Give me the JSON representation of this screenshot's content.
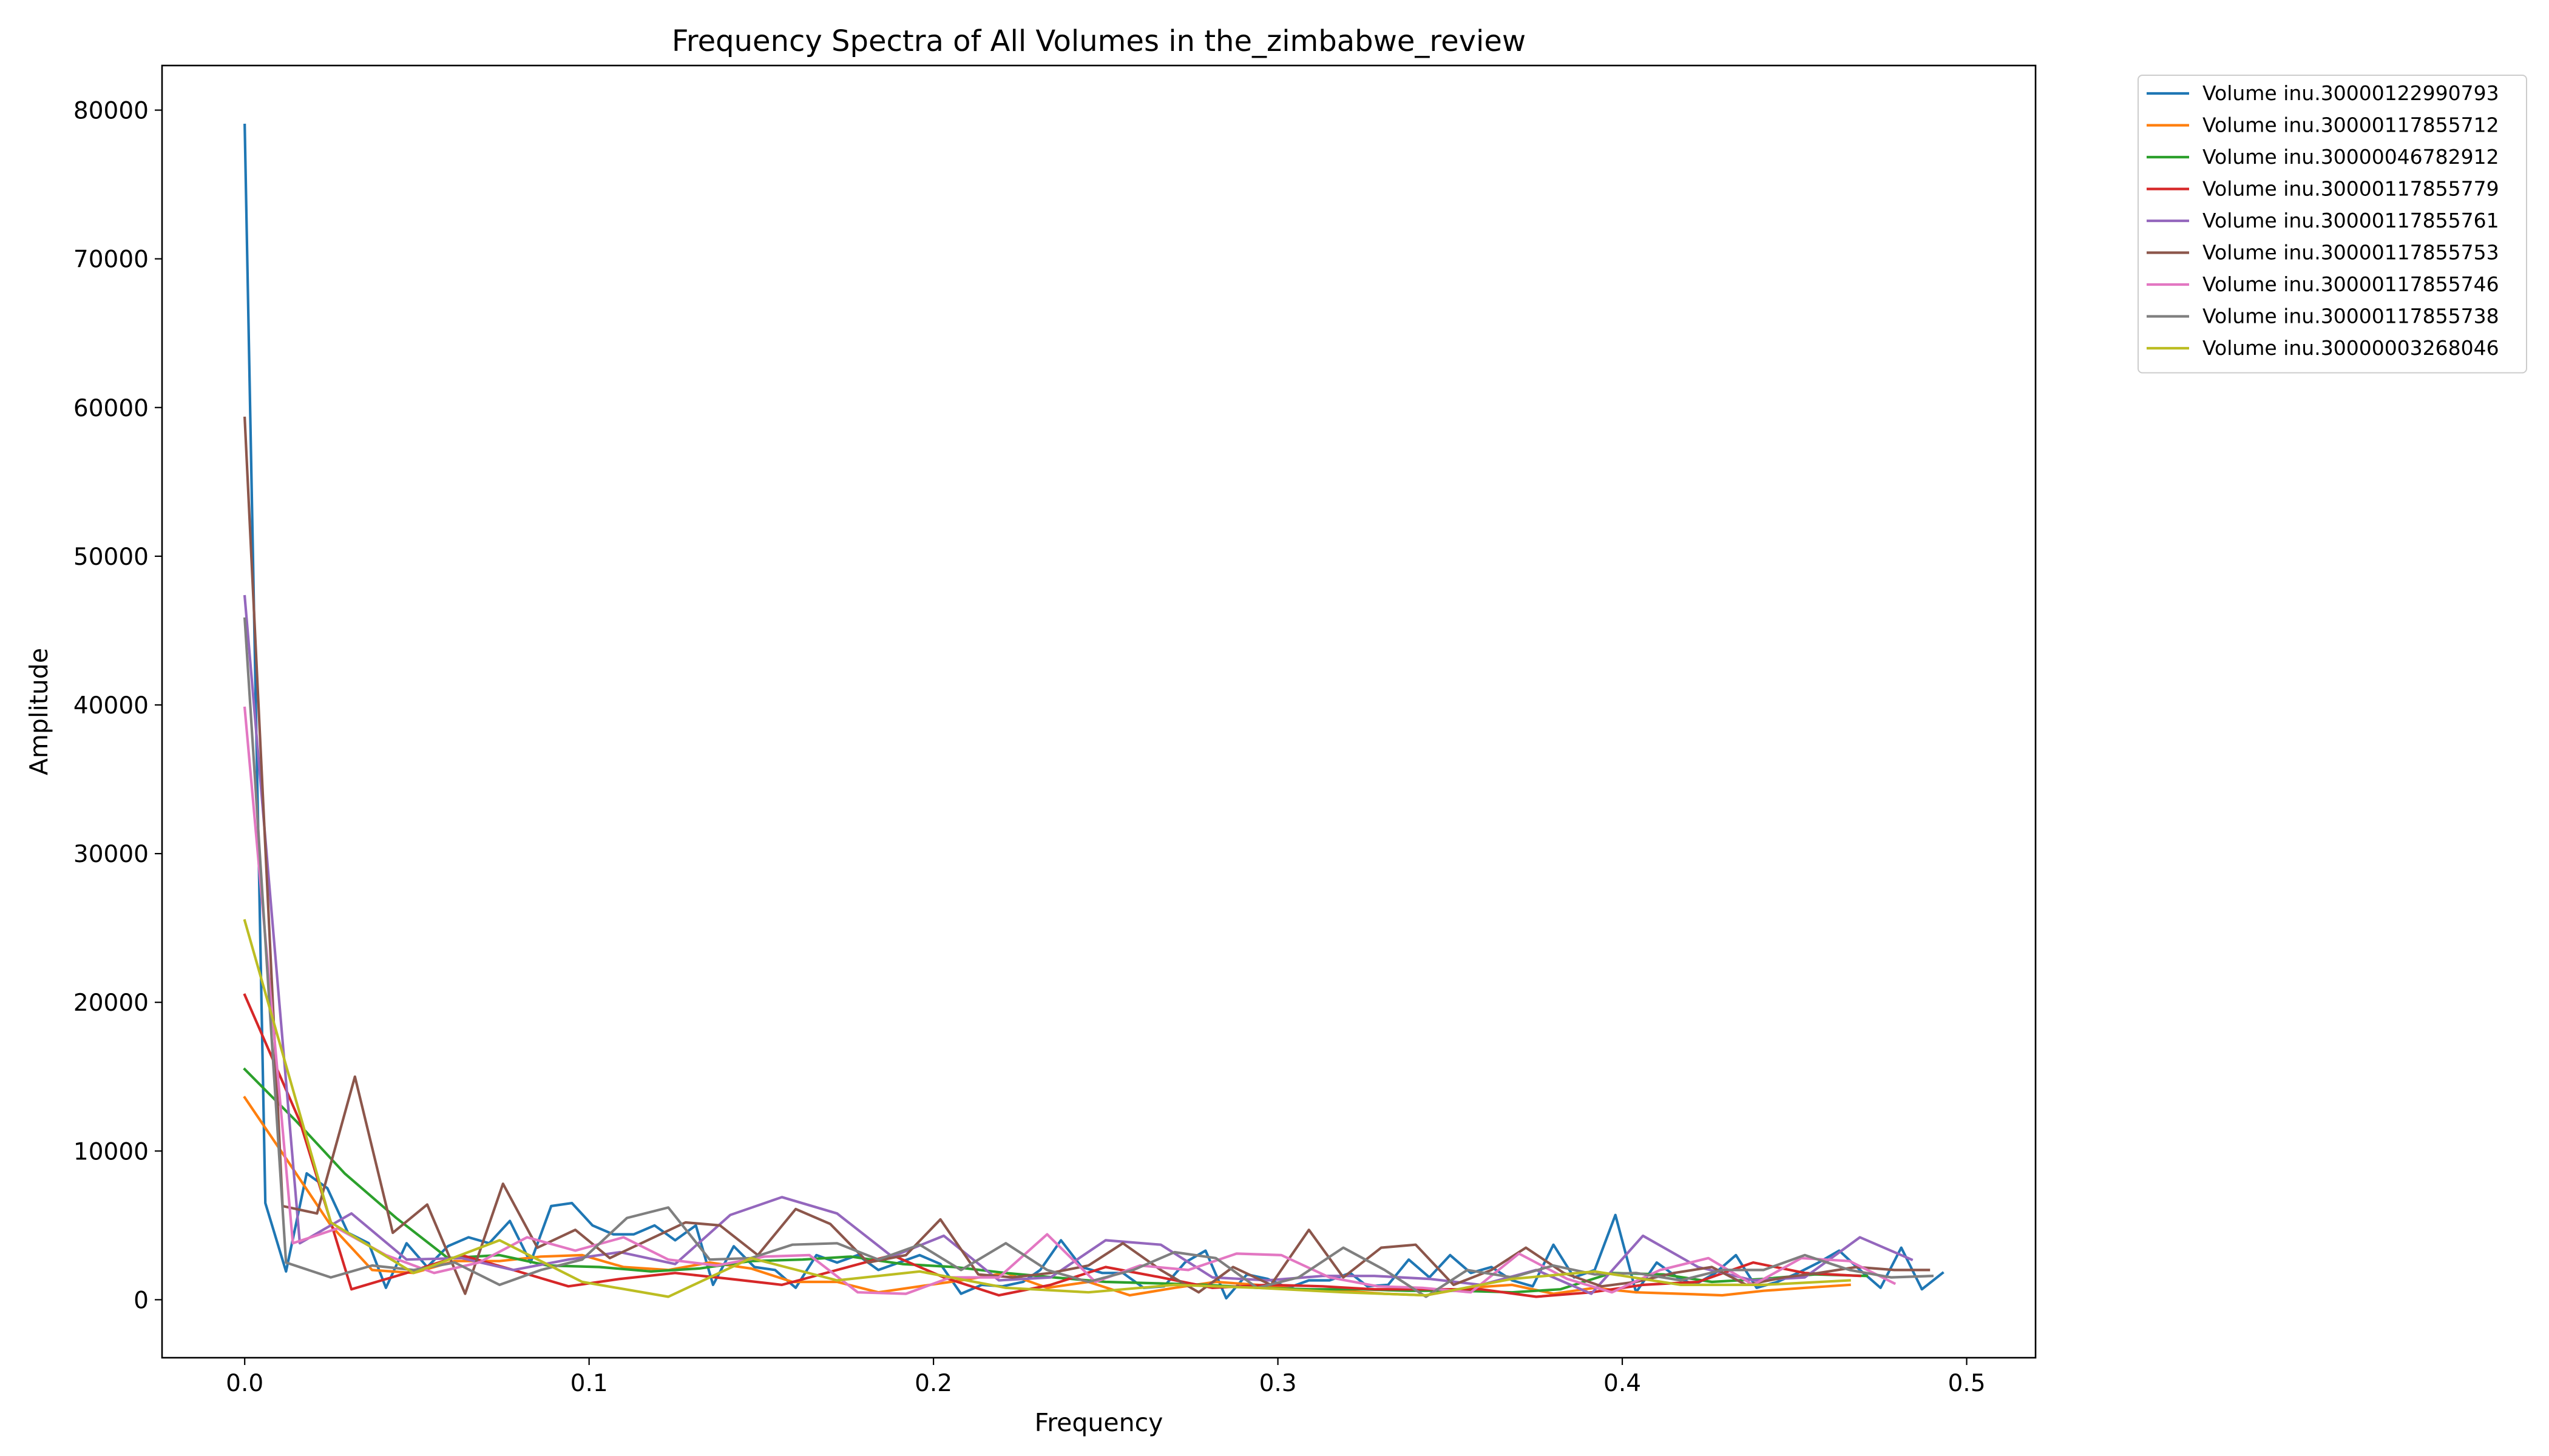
{
  "chart_data": {
    "type": "line",
    "title": "Frequency Spectra of All Volumes in the_zimbabwe_review",
    "xlabel": "Frequency",
    "ylabel": "Amplitude",
    "xlim": [
      -0.024,
      0.52
    ],
    "ylim": [
      -3900,
      83000
    ],
    "xticks": [
      0.0,
      0.1,
      0.2,
      0.3,
      0.4,
      0.5
    ],
    "xtick_labels": [
      "0.0",
      "0.1",
      "0.2",
      "0.3",
      "0.4",
      "0.5"
    ],
    "yticks": [
      0,
      10000,
      20000,
      30000,
      40000,
      50000,
      60000,
      70000,
      80000
    ],
    "ytick_labels": [
      "0",
      "10000",
      "20000",
      "30000",
      "40000",
      "50000",
      "60000",
      "70000",
      "80000"
    ],
    "grid": false,
    "legend_position": "outside top-right",
    "series": [
      {
        "name": "Volume inu.30000122990793",
        "color": "#1f77b4",
        "x": [
          0.0,
          0.006,
          0.012,
          0.018,
          0.024,
          0.03,
          0.036,
          0.041,
          0.047,
          0.053,
          0.059,
          0.065,
          0.071,
          0.077,
          0.083,
          0.089,
          0.095,
          0.101,
          0.107,
          0.113,
          0.119,
          0.125,
          0.131,
          0.136,
          0.142,
          0.148,
          0.154,
          0.16,
          0.166,
          0.172,
          0.178,
          0.184,
          0.19,
          0.196,
          0.202,
          0.208,
          0.214,
          0.22,
          0.226,
          0.231,
          0.237,
          0.243,
          0.249,
          0.255,
          0.261,
          0.267,
          0.273,
          0.279,
          0.285,
          0.291,
          0.297,
          0.303,
          0.309,
          0.315,
          0.321,
          0.326,
          0.332,
          0.338,
          0.344,
          0.35,
          0.356,
          0.362,
          0.368,
          0.374,
          0.38,
          0.386,
          0.392,
          0.398,
          0.404,
          0.41,
          0.416,
          0.421,
          0.427,
          0.433,
          0.439,
          0.445,
          0.451,
          0.457,
          0.463,
          0.469,
          0.475,
          0.481,
          0.487,
          0.493
        ],
        "y": [
          79000,
          6500,
          1900,
          8500,
          7500,
          4500,
          3800,
          800,
          3800,
          2200,
          3600,
          4200,
          3800,
          5300,
          2500,
          6300,
          6500,
          5000,
          4400,
          4400,
          5000,
          4000,
          5000,
          1000,
          3600,
          2200,
          2000,
          800,
          3000,
          2500,
          3000,
          2000,
          2500,
          3000,
          2400,
          400,
          1000,
          900,
          1200,
          2000,
          4000,
          2200,
          1800,
          1800,
          800,
          900,
          2500,
          3300,
          100,
          1700,
          1400,
          800,
          1300,
          1300,
          1800,
          900,
          1000,
          2700,
          1500,
          3000,
          1800,
          2200,
          1300,
          900,
          3700,
          1500,
          2000,
          5700,
          500,
          2500,
          1500,
          1000,
          1800,
          3000,
          800,
          1200,
          1800,
          2500,
          3300,
          2000,
          800,
          3500,
          700,
          1800
        ]
      },
      {
        "name": "Volume inu.30000117855712",
        "color": "#ff7f0e",
        "x": [
          0.0,
          0.012,
          0.025,
          0.037,
          0.049,
          0.061,
          0.074,
          0.086,
          0.098,
          0.11,
          0.123,
          0.135,
          0.147,
          0.159,
          0.172,
          0.184,
          0.196,
          0.208,
          0.221,
          0.233,
          0.245,
          0.257,
          0.27,
          0.282,
          0.294,
          0.306,
          0.319,
          0.331,
          0.343,
          0.355,
          0.368,
          0.38,
          0.392,
          0.404,
          0.417,
          0.429,
          0.441,
          0.453,
          0.466
        ],
        "y": [
          13600,
          9500,
          5000,
          2000,
          1800,
          2600,
          2600,
          2900,
          3000,
          2200,
          2000,
          2500,
          2100,
          1200,
          1200,
          500,
          900,
          1300,
          1800,
          800,
          1200,
          300,
          800,
          1200,
          1000,
          700,
          600,
          400,
          300,
          800,
          1000,
          400,
          800,
          500,
          400,
          300,
          600,
          800,
          1000
        ]
      },
      {
        "name": "Volume inu.30000046782912",
        "color": "#2ca02c",
        "x": [
          0.0,
          0.015,
          0.029,
          0.044,
          0.059,
          0.074,
          0.088,
          0.103,
          0.118,
          0.132,
          0.147,
          0.162,
          0.176,
          0.191,
          0.206,
          0.221,
          0.235,
          0.25,
          0.265,
          0.279,
          0.294,
          0.309,
          0.324,
          0.338,
          0.353,
          0.368,
          0.382,
          0.397,
          0.412,
          0.426,
          0.441,
          0.456,
          0.471
        ],
        "y": [
          15500,
          12000,
          8500,
          5500,
          2800,
          3000,
          2300,
          2200,
          1900,
          2100,
          2600,
          2700,
          2900,
          2400,
          2200,
          1800,
          1500,
          1200,
          1100,
          1000,
          800,
          700,
          700,
          600,
          600,
          500,
          700,
          1800,
          1700,
          1200,
          1400,
          1700,
          1600
        ]
      },
      {
        "name": "Volume inu.30000117855779",
        "color": "#d62728",
        "x": [
          0.0,
          0.016,
          0.031,
          0.047,
          0.063,
          0.078,
          0.094,
          0.109,
          0.125,
          0.141,
          0.156,
          0.172,
          0.188,
          0.203,
          0.219,
          0.234,
          0.25,
          0.266,
          0.281,
          0.297,
          0.313,
          0.328,
          0.344,
          0.359,
          0.375,
          0.391,
          0.406,
          0.422,
          0.438,
          0.453,
          0.469
        ],
        "y": [
          20500,
          12000,
          700,
          1800,
          3000,
          2000,
          900,
          1400,
          1800,
          1400,
          1000,
          2000,
          3000,
          1500,
          300,
          1000,
          2200,
          1500,
          800,
          1000,
          900,
          700,
          700,
          700,
          200,
          500,
          1000,
          1200,
          2500,
          1800,
          1600
        ]
      },
      {
        "name": "Volume inu.30000117855761",
        "color": "#9467bd",
        "x": [
          0.0,
          0.016,
          0.031,
          0.047,
          0.063,
          0.078,
          0.094,
          0.109,
          0.125,
          0.141,
          0.156,
          0.172,
          0.188,
          0.203,
          0.219,
          0.234,
          0.25,
          0.266,
          0.281,
          0.297,
          0.313,
          0.328,
          0.344,
          0.359,
          0.375,
          0.391,
          0.406,
          0.422,
          0.438,
          0.453,
          0.469,
          0.484
        ],
        "y": [
          47300,
          3800,
          5800,
          2700,
          2800,
          2000,
          2700,
          3200,
          2400,
          5700,
          6900,
          5800,
          2900,
          4300,
          1300,
          1500,
          4000,
          3700,
          1500,
          1300,
          1600,
          1600,
          1400,
          1000,
          2000,
          400,
          4300,
          2200,
          1300,
          1500,
          4200,
          2700
        ]
      },
      {
        "name": "Volume inu.30000117855753",
        "color": "#8c564b",
        "x": [
          0.0,
          0.011,
          0.021,
          0.032,
          0.043,
          0.053,
          0.064,
          0.075,
          0.085,
          0.096,
          0.106,
          0.117,
          0.128,
          0.138,
          0.149,
          0.16,
          0.17,
          0.181,
          0.192,
          0.202,
          0.213,
          0.223,
          0.234,
          0.245,
          0.255,
          0.266,
          0.277,
          0.287,
          0.298,
          0.309,
          0.319,
          0.33,
          0.34,
          0.351,
          0.362,
          0.372,
          0.383,
          0.394,
          0.404,
          0.415,
          0.426,
          0.436,
          0.447,
          0.457,
          0.468,
          0.479,
          0.489
        ],
        "y": [
          59300,
          6300,
          5800,
          15000,
          4500,
          6400,
          400,
          7800,
          3500,
          4700,
          2800,
          4000,
          5200,
          5000,
          3000,
          6100,
          5100,
          2500,
          3000,
          5400,
          1700,
          1500,
          1800,
          2300,
          3800,
          2000,
          500,
          2200,
          1000,
          4700,
          1500,
          3500,
          3700,
          1000,
          2000,
          3500,
          1800,
          900,
          1200,
          1800,
          2200,
          1000,
          1500,
          1800,
          2200,
          2000,
          2000
        ]
      },
      {
        "name": "Volume inu.30000117855746",
        "color": "#e377c2",
        "x": [
          0.0,
          0.014,
          0.027,
          0.041,
          0.055,
          0.068,
          0.082,
          0.096,
          0.11,
          0.123,
          0.137,
          0.151,
          0.164,
          0.178,
          0.192,
          0.205,
          0.219,
          0.233,
          0.247,
          0.26,
          0.274,
          0.288,
          0.301,
          0.315,
          0.329,
          0.342,
          0.356,
          0.37,
          0.384,
          0.397,
          0.411,
          0.425,
          0.438,
          0.452,
          0.466,
          0.479
        ],
        "y": [
          39800,
          3800,
          4800,
          3000,
          1800,
          2500,
          4200,
          3300,
          4200,
          2700,
          2300,
          2900,
          3000,
          500,
          400,
          1500,
          1500,
          4400,
          1200,
          2300,
          2000,
          3100,
          3000,
          1500,
          900,
          800,
          500,
          3100,
          1400,
          500,
          2000,
          2800,
          1000,
          2800,
          2600,
          1100
        ]
      },
      {
        "name": "Volume inu.30000117855738",
        "color": "#7f7f7f",
        "x": [
          0.0,
          0.012,
          0.025,
          0.037,
          0.049,
          0.061,
          0.074,
          0.086,
          0.098,
          0.111,
          0.123,
          0.135,
          0.147,
          0.159,
          0.172,
          0.184,
          0.196,
          0.208,
          0.221,
          0.233,
          0.245,
          0.258,
          0.27,
          0.282,
          0.294,
          0.306,
          0.319,
          0.331,
          0.343,
          0.355,
          0.368,
          0.38,
          0.392,
          0.404,
          0.417,
          0.429,
          0.441,
          0.453,
          0.466,
          0.478,
          0.49
        ],
        "y": [
          45800,
          2500,
          1500,
          2300,
          2000,
          2500,
          1000,
          2000,
          2700,
          5500,
          6200,
          2700,
          2800,
          3700,
          3800,
          2700,
          3700,
          2000,
          3800,
          2000,
          1200,
          2000,
          3200,
          2800,
          800,
          1500,
          3500,
          2000,
          200,
          2000,
          1500,
          2300,
          1700,
          1800,
          1300,
          2000,
          2000,
          3000,
          2000,
          1500,
          1600
        ]
      },
      {
        "name": "Volume inu.30000003268046",
        "color": "#bcbd22",
        "x": [
          0.0,
          0.025,
          0.049,
          0.074,
          0.098,
          0.123,
          0.147,
          0.172,
          0.196,
          0.221,
          0.245,
          0.27,
          0.294,
          0.319,
          0.343,
          0.368,
          0.392,
          0.417,
          0.441,
          0.466
        ],
        "y": [
          25500,
          5200,
          1800,
          4000,
          1200,
          200,
          2800,
          1300,
          1900,
          800,
          500,
          1000,
          800,
          500,
          300,
          1400,
          1900,
          1000,
          1000,
          1300
        ]
      }
    ]
  }
}
